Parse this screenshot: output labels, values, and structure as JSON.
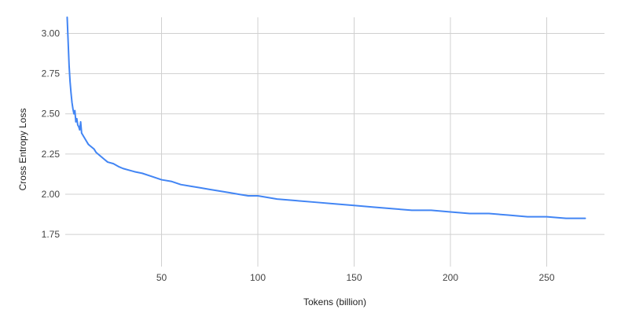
{
  "chart_data": {
    "type": "line",
    "title": "",
    "xlabel": "Tokens (billion)",
    "ylabel": "Cross Entropy Loss",
    "xlim": [
      0,
      280
    ],
    "ylim": [
      1.55,
      3.1
    ],
    "grid": true,
    "legend": "none",
    "x_ticks": [
      50,
      100,
      150,
      200,
      250
    ],
    "x_tick_labels": [
      "50",
      "100",
      "150",
      "200",
      "250"
    ],
    "y_ticks": [
      1.75,
      2.0,
      2.25,
      2.5,
      2.75,
      3.0
    ],
    "y_tick_labels": [
      "1.75",
      "2.00",
      "2.25",
      "2.50",
      "2.75",
      "3.00"
    ],
    "series": [
      {
        "color": "#4285f4",
        "x": [
          1.0,
          1.5,
          2,
          2.5,
          3,
          3.5,
          4,
          4.5,
          5,
          5.5,
          6,
          6.5,
          7,
          7.5,
          8,
          8.5,
          9,
          9.5,
          10,
          11,
          12,
          13,
          14,
          15,
          16,
          18,
          20,
          22,
          25,
          28,
          30,
          33,
          36,
          40,
          45,
          50,
          55,
          60,
          65,
          70,
          75,
          80,
          85,
          90,
          95,
          100,
          110,
          120,
          130,
          140,
          150,
          160,
          170,
          180,
          190,
          200,
          210,
          220,
          230,
          240,
          250,
          260,
          265,
          270
        ],
        "y": [
          3.11,
          2.95,
          2.8,
          2.7,
          2.63,
          2.57,
          2.53,
          2.5,
          2.52,
          2.45,
          2.47,
          2.43,
          2.42,
          2.4,
          2.45,
          2.38,
          2.37,
          2.36,
          2.35,
          2.33,
          2.31,
          2.3,
          2.29,
          2.28,
          2.26,
          2.24,
          2.22,
          2.2,
          2.19,
          2.17,
          2.16,
          2.15,
          2.14,
          2.13,
          2.11,
          2.09,
          2.08,
          2.06,
          2.05,
          2.04,
          2.03,
          2.02,
          2.01,
          2.0,
          1.99,
          1.99,
          1.97,
          1.96,
          1.95,
          1.94,
          1.93,
          1.92,
          1.91,
          1.9,
          1.9,
          1.89,
          1.88,
          1.88,
          1.87,
          1.86,
          1.86,
          1.85,
          1.85,
          1.85
        ]
      }
    ]
  }
}
